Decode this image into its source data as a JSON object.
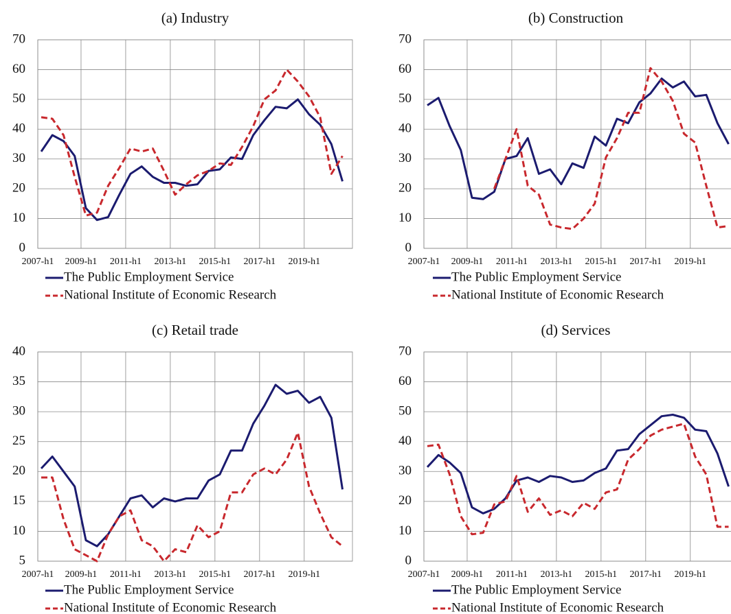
{
  "chart_data": [
    {
      "type": "line",
      "title": "(a) Industry",
      "categories": [
        "2007-h1",
        null,
        null,
        null,
        "2009-h1",
        null,
        null,
        null,
        "2011-h1",
        null,
        null,
        null,
        "2013-h1",
        null,
        null,
        null,
        "2015-h1",
        null,
        null,
        null,
        "2017-h1",
        null,
        null,
        null,
        "2019-h1",
        null,
        null,
        null
      ],
      "ylim": [
        0,
        70
      ],
      "yticks": [
        0,
        10,
        20,
        30,
        40,
        50,
        60,
        70
      ],
      "grid": true,
      "series": [
        {
          "name": "The Public Employment Service",
          "color": "#1b1b6f",
          "values": [
            32.5,
            38,
            36,
            31,
            13.5,
            9.5,
            10.5,
            18,
            25,
            27.5,
            24,
            22,
            22,
            21,
            21.5,
            26,
            26.5,
            30.5,
            30,
            38,
            43,
            47.5,
            47,
            50,
            45,
            41.5,
            35,
            22.5
          ]
        },
        {
          "name": "National Institute of Economic Research",
          "color": "#c8282d",
          "values": [
            44,
            43.5,
            38,
            24,
            11,
            12,
            21,
            27,
            33.5,
            32.5,
            33.5,
            26,
            18,
            21.5,
            24.5,
            26,
            28.5,
            28,
            34,
            41,
            50,
            53,
            60,
            56,
            51,
            44,
            25,
            31
          ]
        }
      ]
    },
    {
      "type": "line",
      "title": "(b) Construction",
      "categories": [
        "2007-h1",
        null,
        null,
        null,
        "2009-h1",
        null,
        null,
        null,
        "2011-h1",
        null,
        null,
        null,
        "2013-h1",
        null,
        null,
        null,
        "2015-h1",
        null,
        null,
        null,
        "2017-h1",
        null,
        null,
        null,
        "2019-h1",
        null,
        null,
        null
      ],
      "ylim": [
        0,
        70
      ],
      "yticks": [
        0,
        10,
        20,
        30,
        40,
        50,
        60,
        70
      ],
      "grid": true,
      "series": [
        {
          "name": "The Public Employment Service",
          "color": "#1b1b6f",
          "values": [
            48,
            50.5,
            41,
            33,
            17,
            16.5,
            19,
            30,
            31,
            37,
            25,
            26.5,
            21.5,
            28.5,
            27,
            37.5,
            34.5,
            43.5,
            42,
            49,
            52,
            57,
            54,
            56,
            51,
            51.5,
            42,
            35
          ]
        },
        {
          "name": "National Institute of Economic Research",
          "color": "#c8282d",
          "values": [
            null,
            null,
            null,
            null,
            null,
            null,
            20,
            30,
            40,
            21,
            18,
            8,
            7,
            6.5,
            10,
            15,
            30.5,
            37,
            45.5,
            45.5,
            60.5,
            56,
            49.5,
            38.5,
            35.5,
            21,
            7,
            7.5
          ]
        }
      ]
    },
    {
      "type": "line",
      "title": "(c) Retail trade",
      "categories": [
        "2007-h1",
        null,
        null,
        null,
        "2009-h1",
        null,
        null,
        null,
        "2011-h1",
        null,
        null,
        null,
        "2013-h1",
        null,
        null,
        null,
        "2015-h1",
        null,
        null,
        null,
        "2017-h1",
        null,
        null,
        null,
        "2019-h1",
        null,
        null,
        null
      ],
      "ylim": [
        5,
        40
      ],
      "yticks": [
        5,
        10,
        15,
        20,
        25,
        30,
        35,
        40
      ],
      "grid": true,
      "series": [
        {
          "name": "The Public Employment Service",
          "color": "#1b1b6f",
          "values": [
            20.5,
            22.5,
            20,
            17.5,
            8.5,
            7.5,
            9.5,
            12.5,
            15.5,
            16,
            14,
            15.5,
            15,
            15.5,
            15.5,
            18.5,
            19.5,
            23.5,
            23.5,
            28,
            31,
            34.5,
            33,
            33.5,
            31.5,
            32.5,
            29,
            17
          ]
        },
        {
          "name": "National Institute of Economic Research",
          "color": "#c8282d",
          "values": [
            19,
            19,
            12,
            7,
            6,
            5,
            9.5,
            12.5,
            13.5,
            8.5,
            7.5,
            5,
            7,
            6.5,
            11,
            9,
            10,
            16.5,
            16.5,
            19.5,
            20.5,
            19.5,
            22,
            26.5,
            17.5,
            13,
            9,
            7.5
          ]
        }
      ]
    },
    {
      "type": "line",
      "title": "(d) Services",
      "categories": [
        "2007-h1",
        null,
        null,
        null,
        "2009-h1",
        null,
        null,
        null,
        "2011-h1",
        null,
        null,
        null,
        "2013-h1",
        null,
        null,
        null,
        "2015-h1",
        null,
        null,
        null,
        "2017-h1",
        null,
        null,
        null,
        "2019-h1",
        null,
        null,
        null
      ],
      "ylim": [
        0,
        70
      ],
      "yticks": [
        0,
        10,
        20,
        30,
        40,
        50,
        60,
        70
      ],
      "grid": true,
      "series": [
        {
          "name": "The Public Employment Service",
          "color": "#1b1b6f",
          "values": [
            31.5,
            35.5,
            33,
            29.5,
            18,
            16,
            17.5,
            21,
            27,
            28,
            26.5,
            28.5,
            28,
            26.5,
            27,
            29.5,
            31,
            37,
            37.5,
            42.5,
            45.5,
            48.5,
            49,
            48,
            44,
            43.5,
            36,
            25
          ]
        },
        {
          "name": "National Institute of Economic Research",
          "color": "#c8282d",
          "values": [
            38.5,
            39,
            29,
            15,
            9,
            9.5,
            19,
            20,
            28.5,
            16.5,
            21,
            15.5,
            17,
            15,
            19.5,
            17.5,
            23,
            24,
            34,
            37.5,
            42,
            44,
            45,
            46,
            35,
            29,
            11.5,
            11.5
          ]
        }
      ]
    }
  ]
}
